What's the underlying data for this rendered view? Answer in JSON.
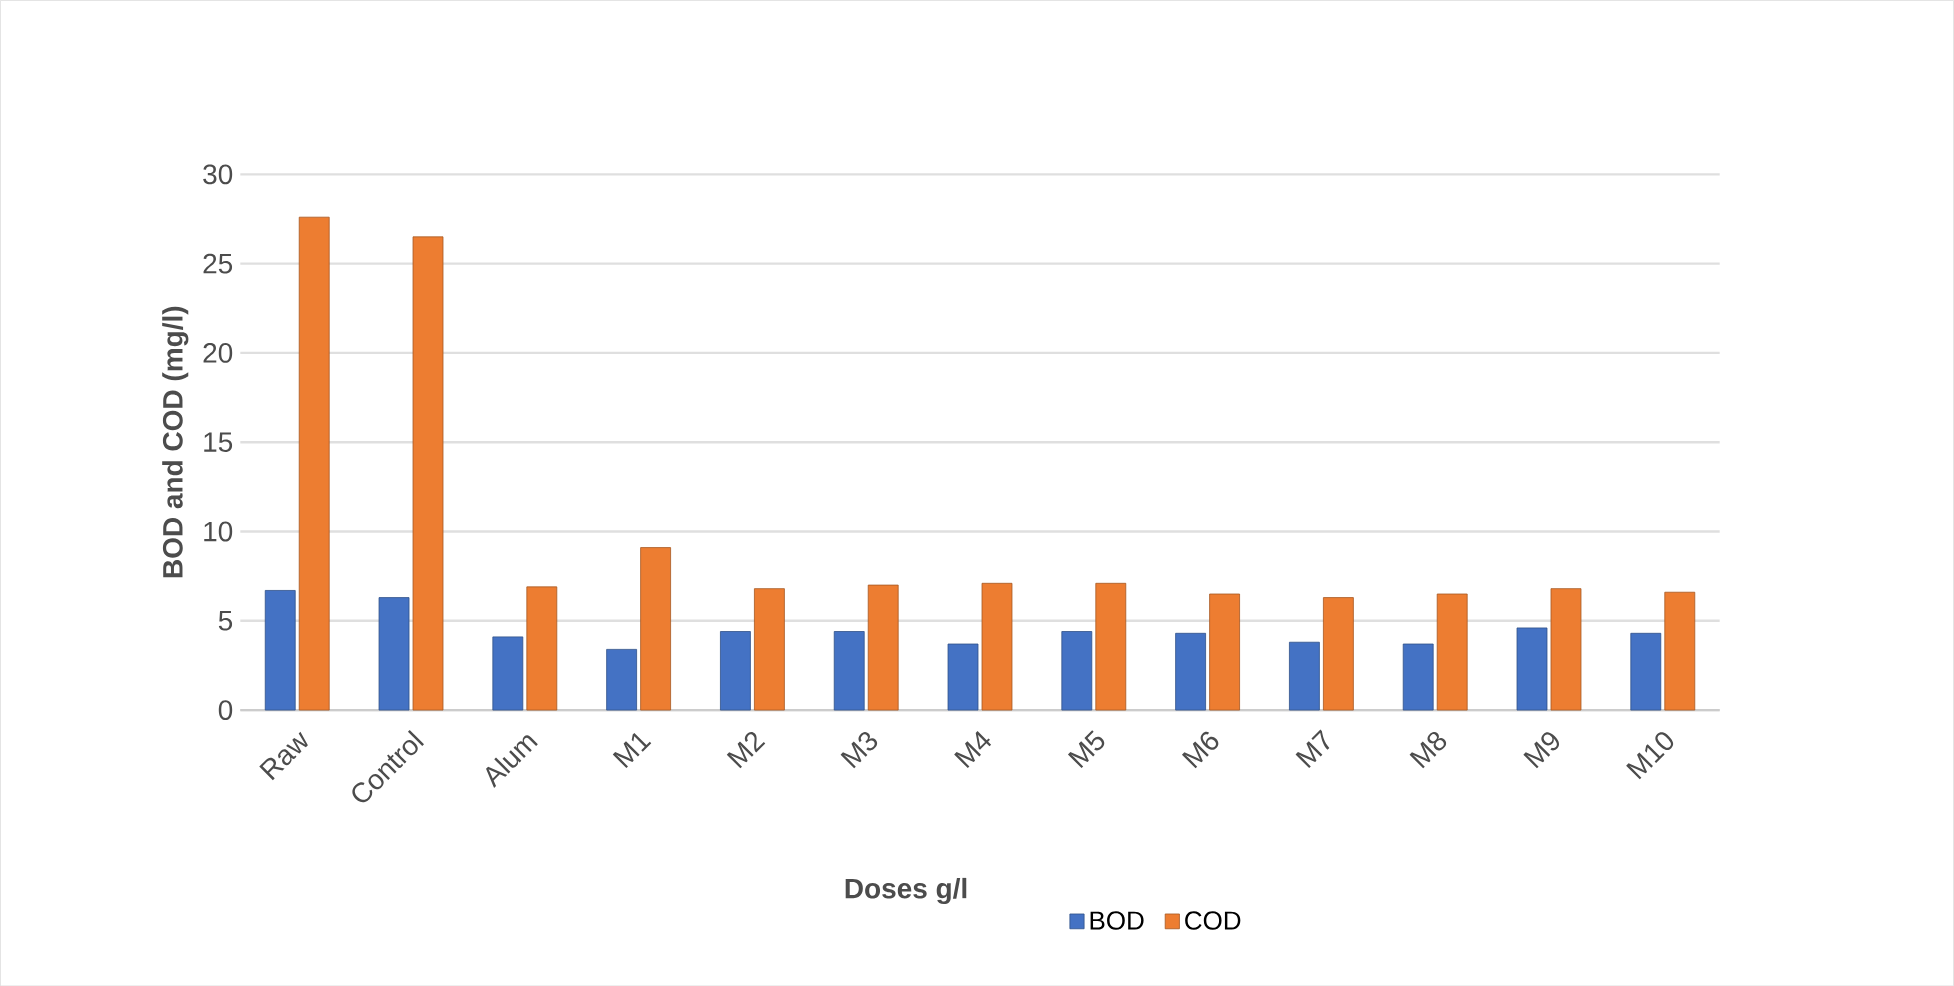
{
  "chart_data": {
    "type": "bar",
    "xlabel": "Doses g/l",
    "ylabel": "BOD and COD (mg/l)",
    "categories": [
      "Raw",
      "Control",
      "Alum",
      "M1",
      "M2",
      "M3",
      "M4",
      "M5",
      "M6",
      "M7",
      "M8",
      "M9",
      "M10"
    ],
    "series": [
      {
        "name": "BOD",
        "color": "#4472c4",
        "values": [
          6.7,
          6.3,
          4.1,
          3.4,
          4.4,
          4.4,
          3.7,
          4.4,
          4.3,
          3.8,
          3.7,
          4.6,
          4.3
        ]
      },
      {
        "name": "COD",
        "color": "#ed7d31",
        "values": [
          27.6,
          26.5,
          6.9,
          9.1,
          6.8,
          7.0,
          7.1,
          7.1,
          6.5,
          6.3,
          6.5,
          6.8,
          6.6
        ]
      }
    ],
    "ylim": [
      0,
      30
    ],
    "yticks": [
      0,
      5,
      10,
      15,
      20,
      25,
      30
    ],
    "grid": "y",
    "legend": "bottom"
  }
}
